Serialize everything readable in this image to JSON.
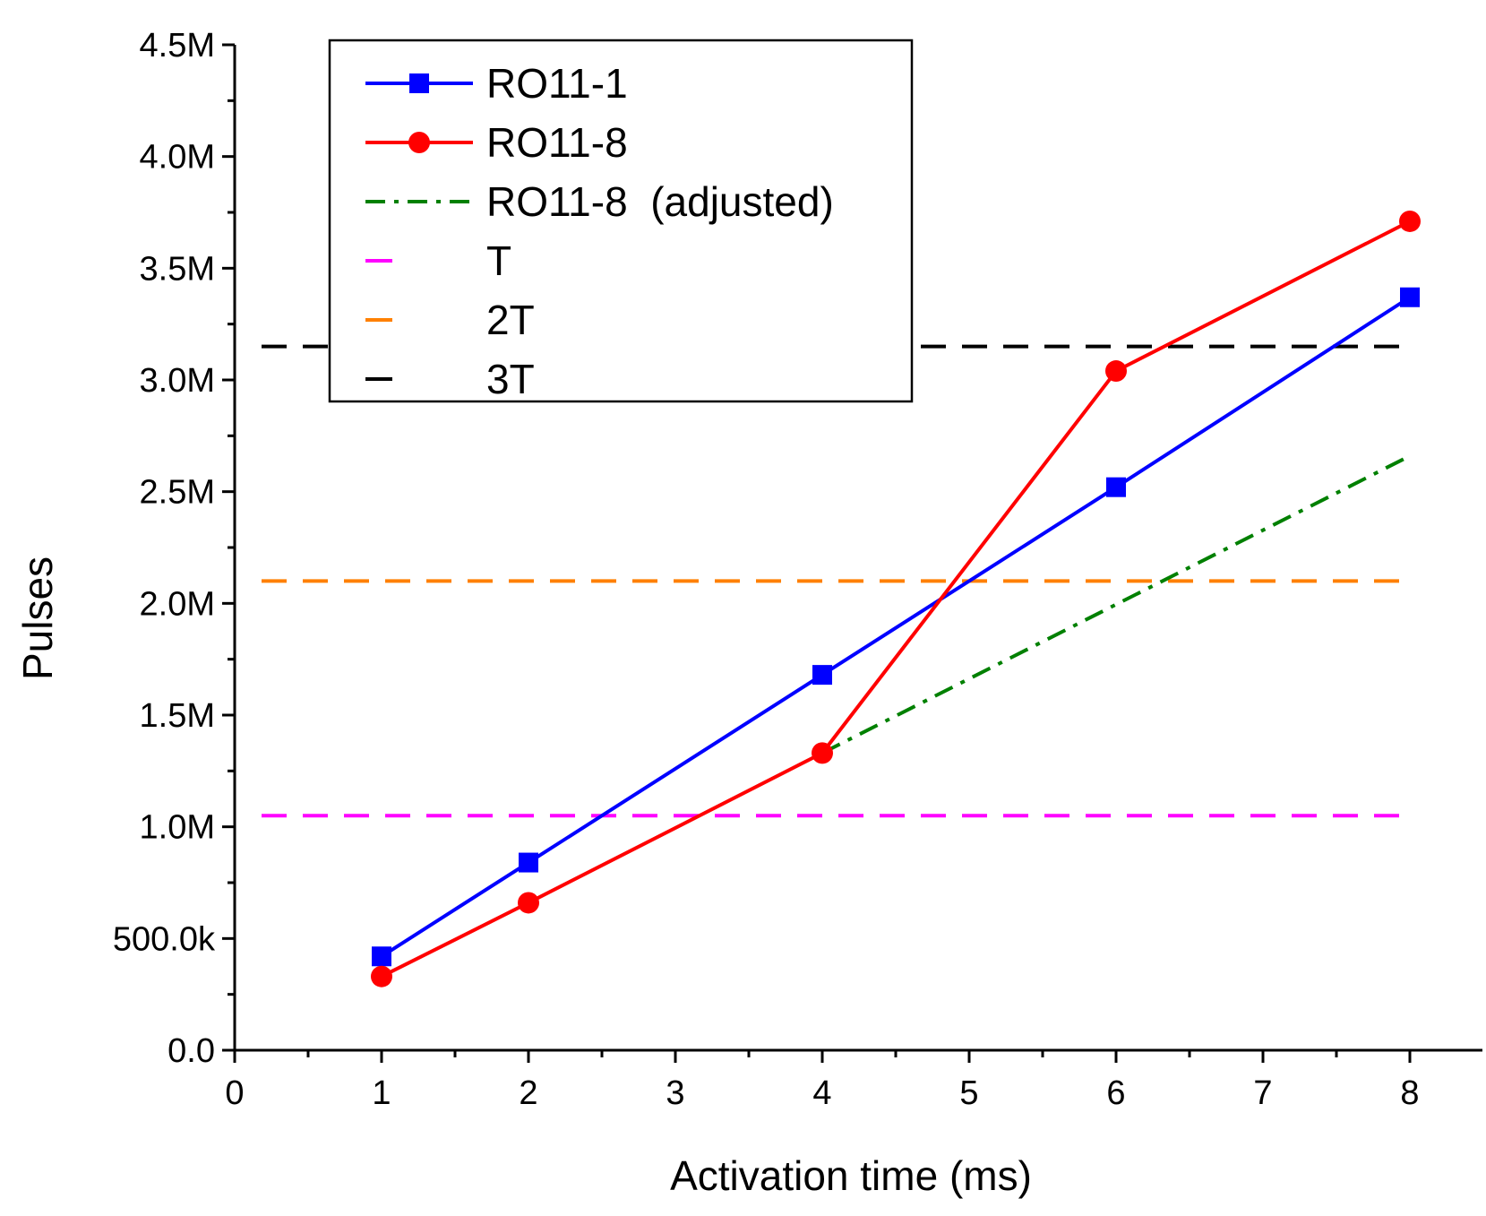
{
  "chart_data": {
    "type": "line",
    "xlabel": "Activation time (ms)",
    "ylabel": "Pulses",
    "x_ticks": [
      "0",
      "1",
      "2",
      "3",
      "4",
      "5",
      "6",
      "7",
      "8"
    ],
    "y_ticks": [
      "0.0",
      "500.0k",
      "1.0M",
      "1.5M",
      "2.0M",
      "2.5M",
      "3.0M",
      "3.5M",
      "4.0M",
      "4.5M"
    ],
    "xlim": [
      0,
      8.5
    ],
    "ylim": [
      0,
      4500000
    ],
    "x_tick_positions": [
      1,
      2,
      4,
      5,
      6,
      8
    ],
    "series": [
      {
        "name": "RO11-1",
        "color": "#0000ff",
        "style": "solid",
        "marker": "square",
        "categories": [
          "1",
          "2",
          "4",
          "6",
          "8"
        ],
        "values": [
          420000,
          840000,
          1680000,
          2520000,
          3370000
        ]
      },
      {
        "name": "RO11-8",
        "color": "#ff0000",
        "style": "solid",
        "marker": "circle",
        "categories": [
          "1",
          "2",
          "4",
          "6",
          "8"
        ],
        "values": [
          330000,
          660000,
          1330000,
          3040000,
          3710000
        ]
      },
      {
        "name": "RO11-8  (adjusted)",
        "color": "#008000",
        "style": "dash-dot",
        "marker": "none",
        "categories": [
          "4",
          "8"
        ],
        "values": [
          1330000,
          2660000
        ]
      },
      {
        "name": "T",
        "color": "#ff00ff",
        "style": "dashed",
        "marker": "none",
        "categories": [
          "0",
          "8"
        ],
        "values": [
          1050000,
          1050000
        ]
      },
      {
        "name": "2T",
        "color": "#ff8000",
        "style": "dashed",
        "marker": "none",
        "categories": [
          "0",
          "8"
        ],
        "values": [
          2100000,
          2100000
        ]
      },
      {
        "name": "3T",
        "color": "#000000",
        "style": "dashed",
        "marker": "none",
        "categories": [
          "0",
          "8"
        ],
        "values": [
          3150000,
          3150000
        ]
      }
    ],
    "legend_position": "top-left",
    "grid": false
  }
}
